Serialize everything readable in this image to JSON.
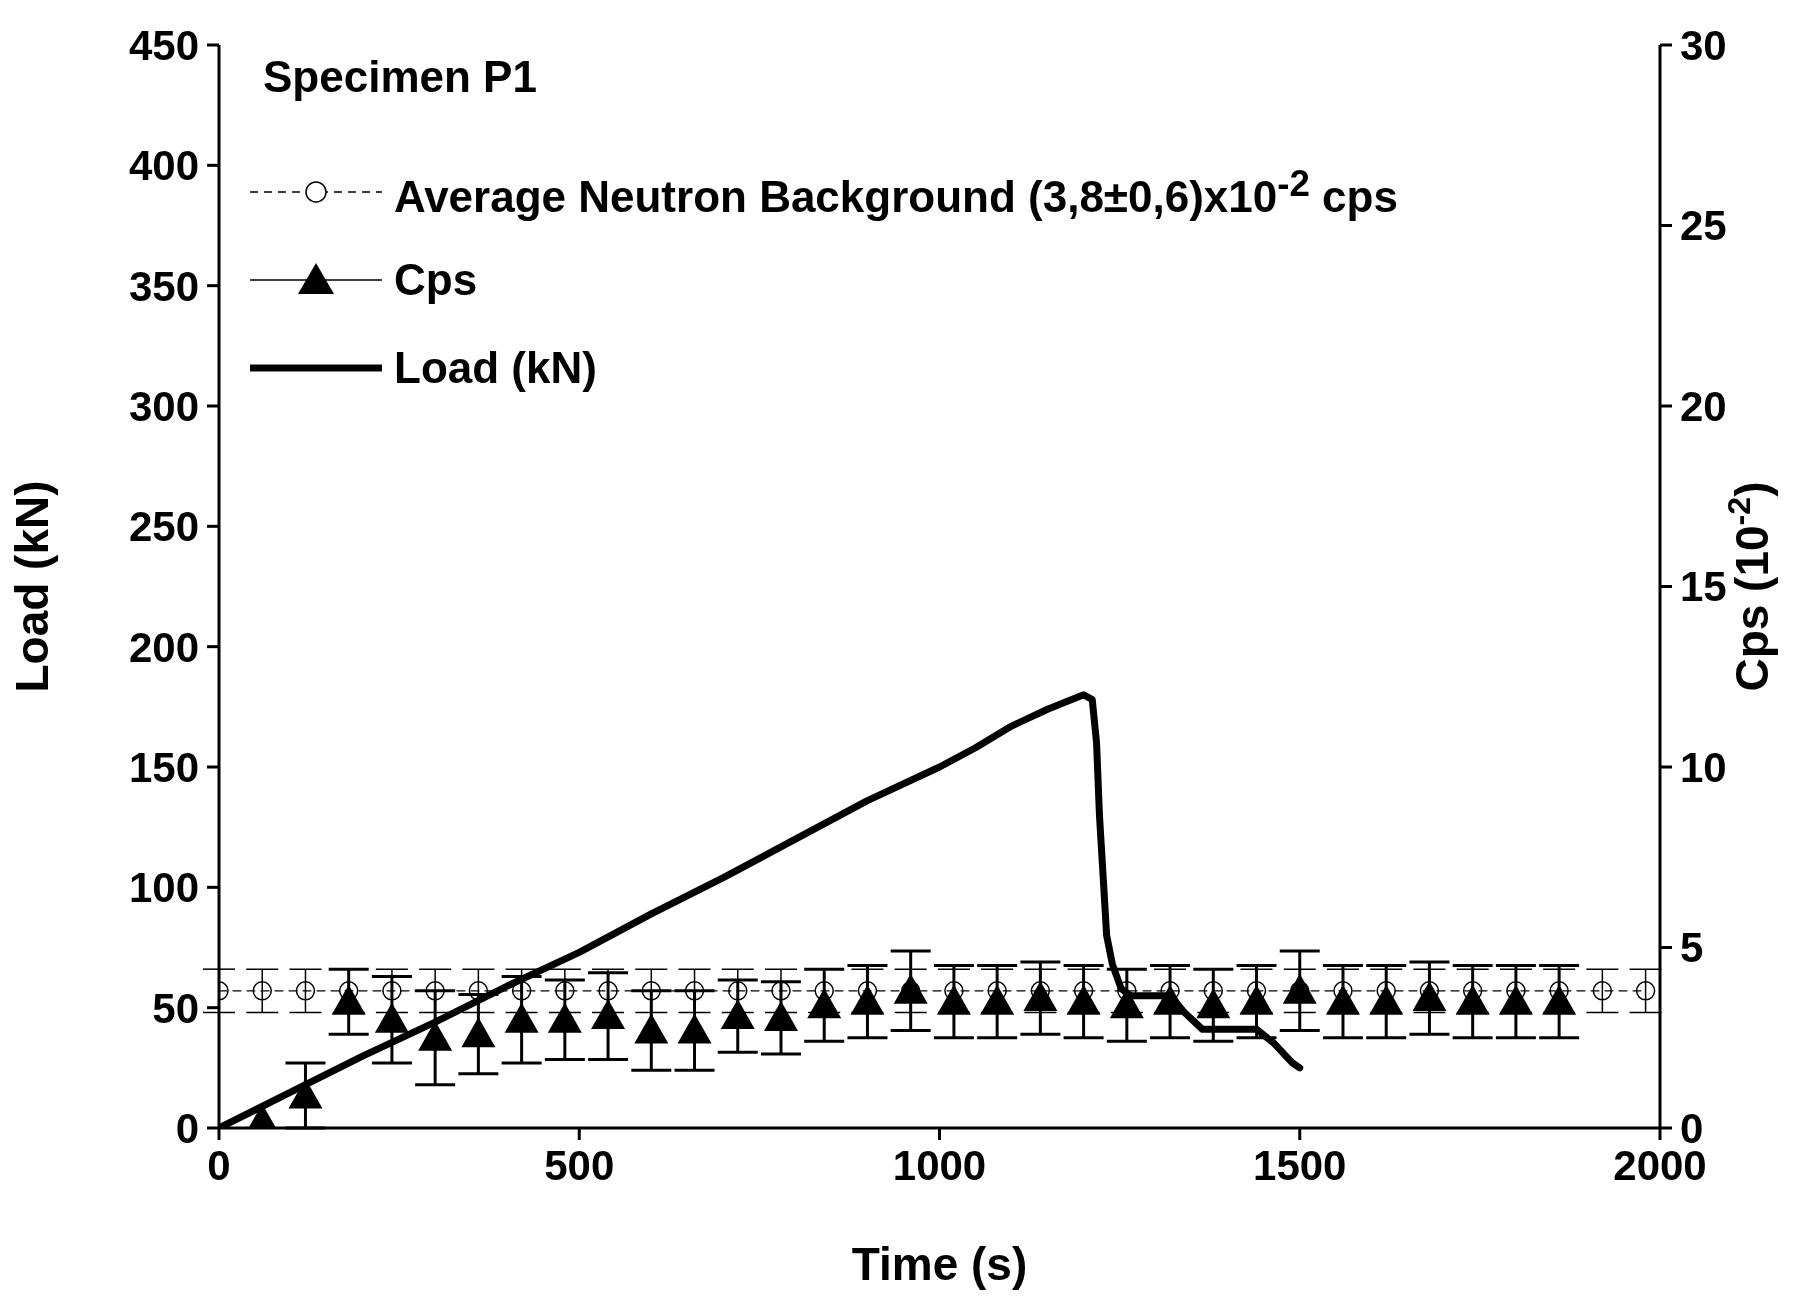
{
  "chart_data": {
    "type": "line",
    "title": "Specimen P1",
    "xlabel": "Time (s)",
    "ylabel": "Load (kN)",
    "y2label": "Cps (10$^{-2}$)",
    "xlim": [
      0,
      2000
    ],
    "xticks": [
      0,
      500,
      1000,
      1500,
      2000
    ],
    "ylim": [
      0,
      450
    ],
    "yticks": [
      0,
      50,
      100,
      150,
      200,
      250,
      300,
      350,
      400,
      450
    ],
    "y2lim": [
      0,
      30
    ],
    "y2ticks": [
      0,
      5,
      10,
      15,
      20,
      25,
      30
    ],
    "grid": false,
    "legend": "top left",
    "series": [
      {
        "name": "Average Neutron Background (3,8±0,6)x10$^{-2}$ cps",
        "axis": "y2",
        "color": "#000000",
        "marker": "circle",
        "line_style": "dashed",
        "x": [
          0,
          60,
          120,
          180,
          240,
          300,
          360,
          420,
          480,
          540,
          600,
          660,
          720,
          780,
          840,
          900,
          960,
          1020,
          1080,
          1140,
          1200,
          1260,
          1320,
          1380,
          1440,
          1500,
          1560,
          1620,
          1680,
          1740,
          1800,
          1860,
          1920,
          1980
        ],
        "values": [
          3.8,
          3.8,
          3.8,
          3.8,
          3.8,
          3.8,
          3.8,
          3.8,
          3.8,
          3.8,
          3.8,
          3.8,
          3.8,
          3.8,
          3.8,
          3.8,
          3.8,
          3.8,
          3.8,
          3.8,
          3.8,
          3.8,
          3.8,
          3.8,
          3.8,
          3.8,
          3.8,
          3.8,
          3.8,
          3.8,
          3.8,
          3.8,
          3.8,
          3.8
        ],
        "errors": [
          0.6,
          0.6,
          0.6,
          0.6,
          0.6,
          0.6,
          0.6,
          0.6,
          0.6,
          0.6,
          0.6,
          0.6,
          0.6,
          0.6,
          0.6,
          0.6,
          0.6,
          0.6,
          0.6,
          0.6,
          0.6,
          0.6,
          0.6,
          0.6,
          0.6,
          0.6,
          0.6,
          0.6,
          0.6,
          0.6,
          0.6,
          0.6,
          0.6,
          0.6
        ]
      },
      {
        "name": "Cps",
        "type": "scatter",
        "axis": "y2",
        "color": "#000000",
        "marker": "triangle",
        "x": [
          60,
          120,
          180,
          240,
          300,
          360,
          420,
          480,
          540,
          600,
          660,
          720,
          780,
          840,
          900,
          960,
          1020,
          1080,
          1140,
          1200,
          1260,
          1320,
          1380,
          1440,
          1500,
          1560,
          1620,
          1680,
          1740,
          1800,
          1860
        ],
        "values": [
          0.2,
          0.9,
          3.5,
          3.0,
          2.5,
          2.6,
          3.0,
          3.0,
          3.1,
          2.7,
          2.7,
          3.1,
          3.05,
          3.4,
          3.5,
          3.8,
          3.5,
          3.5,
          3.6,
          3.5,
          3.4,
          3.5,
          3.4,
          3.5,
          3.8,
          3.5,
          3.5,
          3.6,
          3.5,
          3.5,
          3.5
        ],
        "errors": [
          null,
          0.9,
          0.9,
          1.2,
          1.3,
          1.1,
          1.2,
          1.1,
          1.2,
          1.1,
          1.1,
          1.0,
          1.0,
          1.0,
          1.0,
          1.1,
          1.0,
          1.0,
          1.0,
          1.0,
          1.0,
          1.0,
          1.0,
          1.0,
          1.1,
          1.0,
          1.0,
          1.0,
          1.0,
          1.0,
          1.0
        ]
      },
      {
        "name": "Load (kN)",
        "color": "#000000",
        "marker": "none",
        "line_style": "solid",
        "x": [
          0,
          100,
          200,
          300,
          400,
          500,
          600,
          700,
          800,
          900,
          1000,
          1050,
          1100,
          1150,
          1200,
          1212,
          1218,
          1222,
          1228,
          1232,
          1240,
          1252,
          1265,
          1320,
          1340,
          1365,
          1440,
          1465,
          1490,
          1500
        ],
        "values": [
          0,
          15,
          30,
          44,
          59,
          73,
          89,
          104,
          120,
          136,
          150,
          158,
          167,
          174,
          180,
          178,
          160,
          130,
          100,
          80,
          68,
          58,
          55,
          55,
          48,
          41,
          41,
          35,
          27,
          25
        ]
      }
    ]
  }
}
